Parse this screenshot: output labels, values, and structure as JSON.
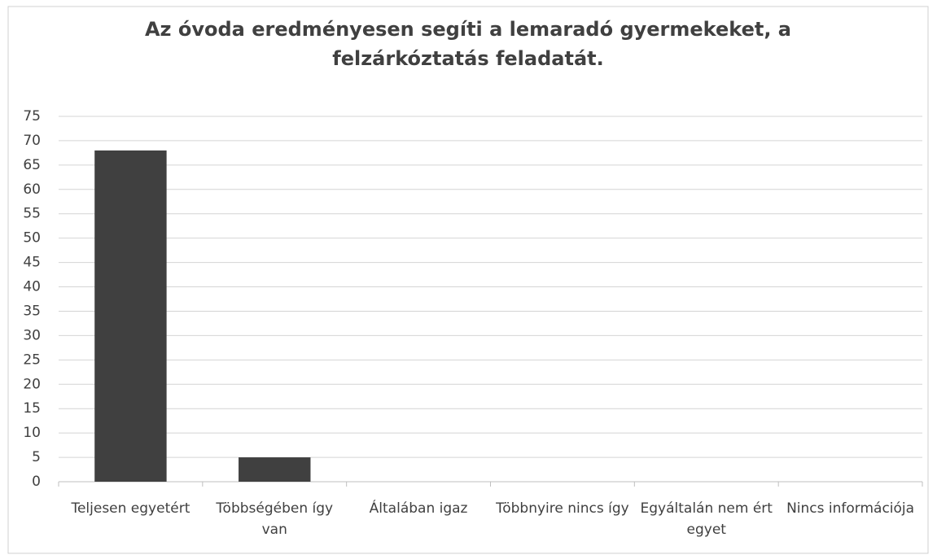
{
  "chart_data": {
    "type": "bar",
    "title": "Az óvoda eredményesen segíti a lemaradó gyermekeket, a felzárkóztatás feladatát.",
    "categories": [
      "Teljesen egyetért",
      "Többségében így van",
      "Általában igaz",
      "Többnyire nincs így",
      "Egyáltalán nem ért egyet",
      "Nincs információja"
    ],
    "values": [
      68,
      5,
      0,
      0,
      0,
      0
    ],
    "color": "#404040",
    "ylim": [
      0,
      75
    ],
    "yticks": [
      0,
      5,
      10,
      15,
      20,
      25,
      30,
      35,
      40,
      45,
      50,
      55,
      60,
      65,
      70,
      75
    ],
    "grid": true
  }
}
